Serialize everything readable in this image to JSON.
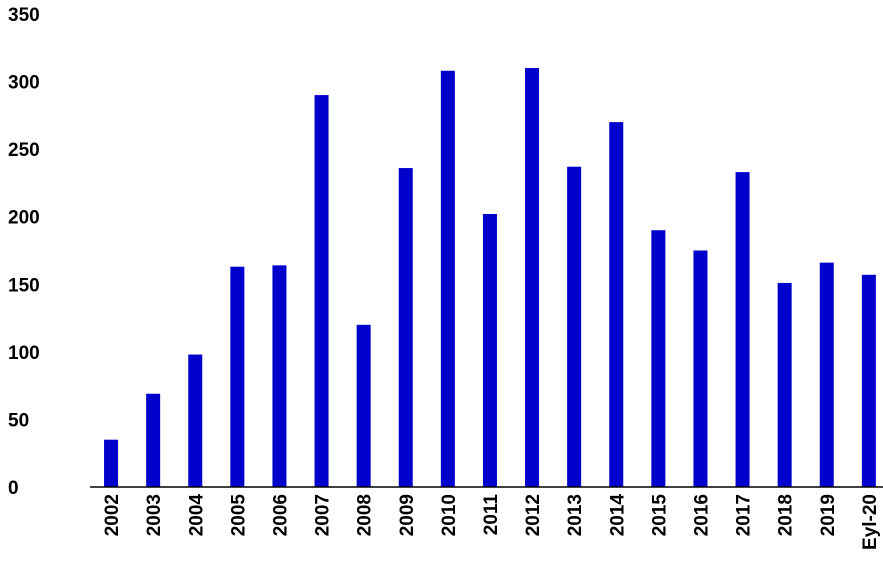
{
  "chart_data": {
    "type": "bar",
    "title": "",
    "xlabel": "",
    "ylabel": "",
    "categories": [
      "2002",
      "2003",
      "2004",
      "2005",
      "2006",
      "2007",
      "2008",
      "2009",
      "2010",
      "2011",
      "2012",
      "2013",
      "2014",
      "2015",
      "2016",
      "2017",
      "2018",
      "2019",
      "Eyl-20"
    ],
    "values": [
      35,
      69,
      98,
      163,
      164,
      290,
      120,
      236,
      308,
      202,
      310,
      237,
      270,
      190,
      175,
      233,
      151,
      166,
      157
    ],
    "ylim": [
      0,
      350
    ],
    "yticks": [
      0,
      50,
      100,
      150,
      200,
      250,
      300,
      350
    ],
    "ytick_labels": [
      "0",
      "50",
      "100",
      "150",
      "200",
      "250",
      "300",
      "350"
    ],
    "grid": false,
    "legend": "none",
    "bar_color": "#0000CC",
    "axis_color": "#000000"
  }
}
